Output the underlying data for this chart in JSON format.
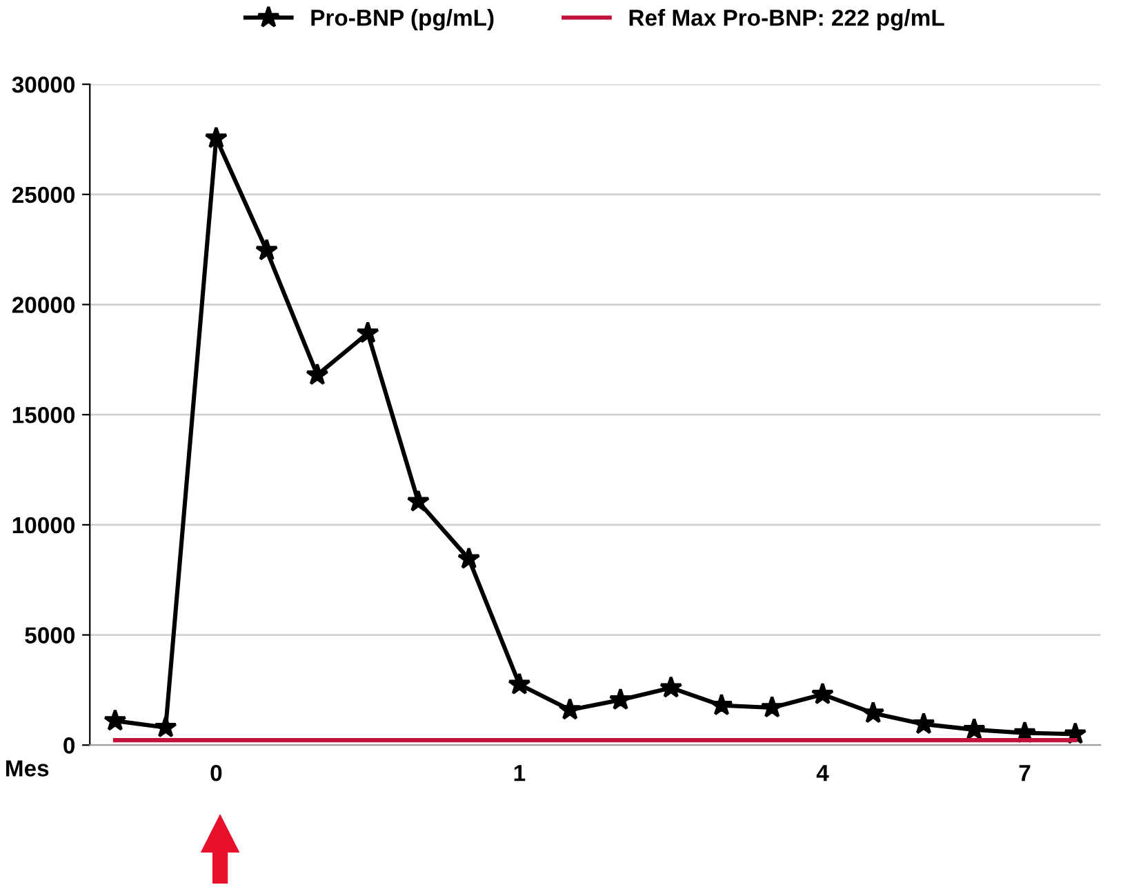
{
  "chart_data": {
    "type": "line",
    "xlabel": "Mes",
    "categories": [
      null,
      null,
      "0",
      null,
      null,
      null,
      null,
      null,
      "1",
      null,
      null,
      null,
      null,
      null,
      "4",
      null,
      null,
      null,
      "7",
      null
    ],
    "series": [
      {
        "name": "Pro-BNP (pg/mL)",
        "color": "#000000",
        "marker": "star",
        "values": [
          1100,
          800,
          27550,
          22450,
          16800,
          18700,
          11050,
          8450,
          2750,
          1600,
          2050,
          2600,
          1800,
          1700,
          2300,
          1450,
          950,
          700,
          550,
          500
        ]
      },
      {
        "name": "Ref Max Pro-BNP: 222 pg/mL",
        "color": "#c0143c",
        "marker": "none",
        "values": [
          222,
          222,
          222,
          222,
          222,
          222,
          222,
          222,
          222,
          222,
          222,
          222,
          222,
          222,
          222,
          222,
          222,
          222,
          222,
          222
        ]
      }
    ],
    "ylim": [
      0,
      30000
    ],
    "yticks": [
      0,
      5000,
      10000,
      15000,
      20000,
      25000,
      30000
    ],
    "grid": "y",
    "legend": "top",
    "line_style": "solid"
  }
}
